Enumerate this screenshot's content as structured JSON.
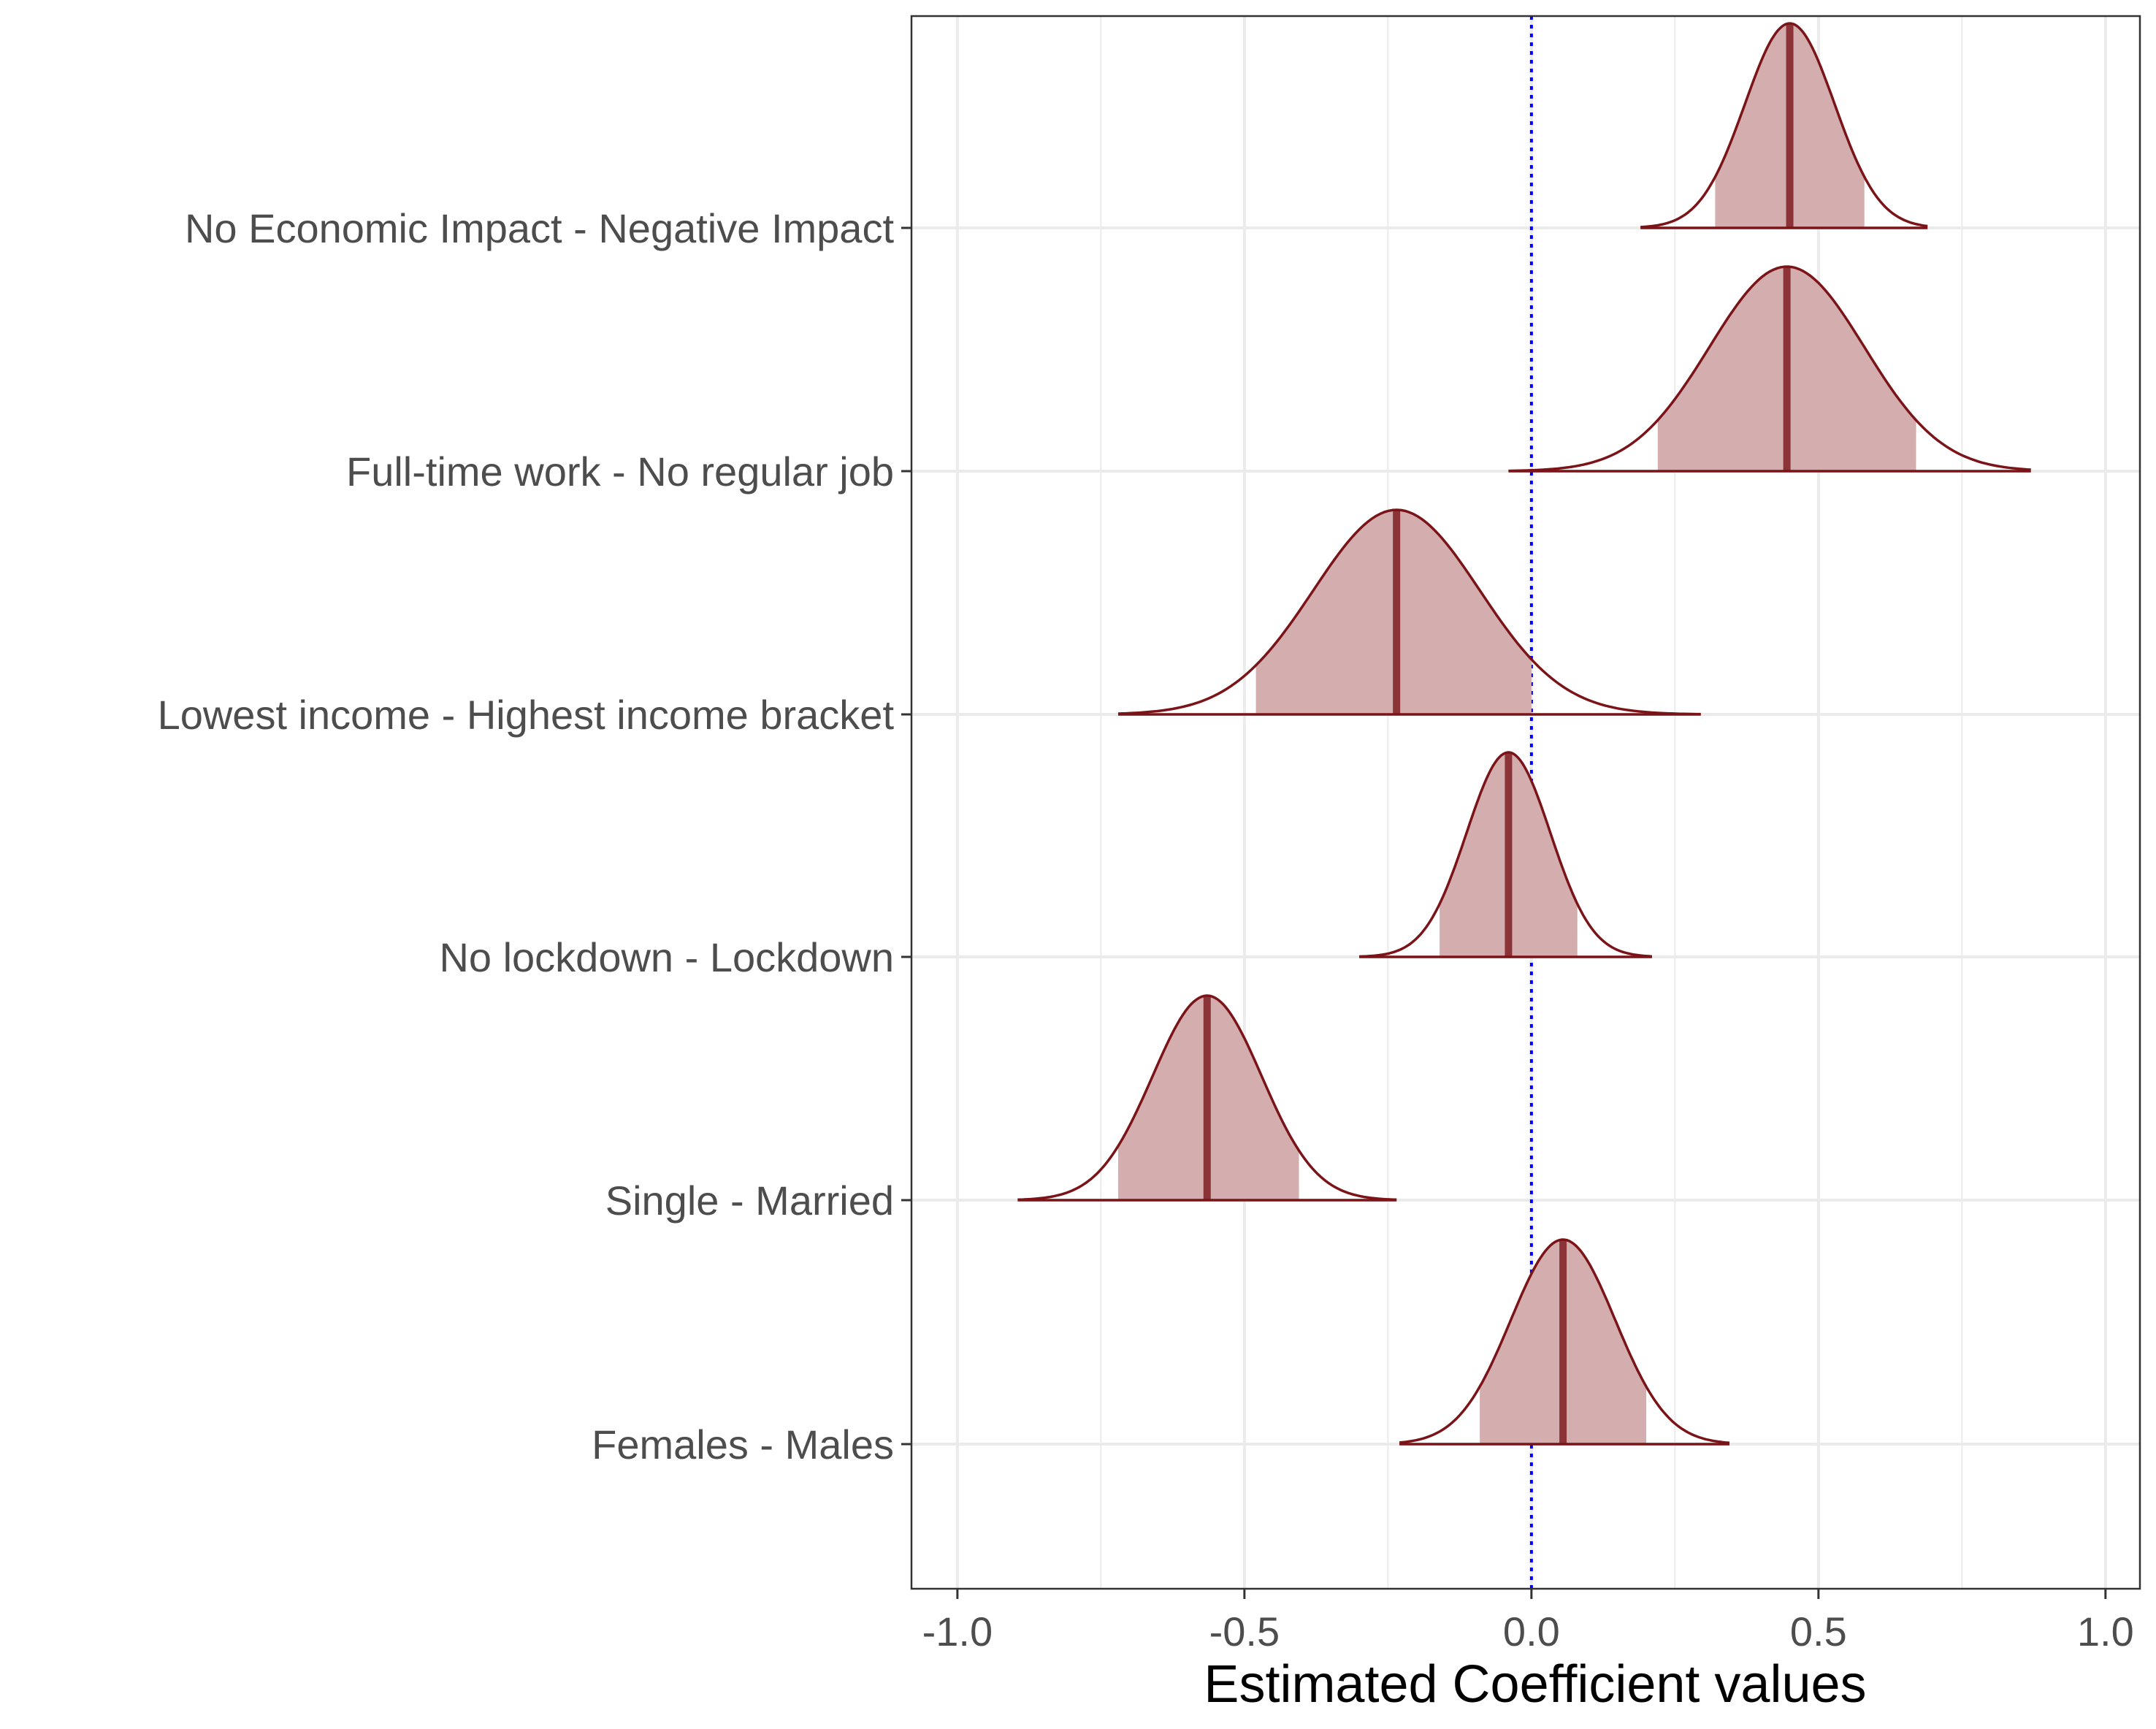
{
  "chart_data": {
    "type": "density-ridge",
    "title": "",
    "xlabel": "Estimated Coefficient values",
    "ylabel": "",
    "xlim": [
      -1.08,
      1.06
    ],
    "x_ticks": [
      -1.0,
      -0.5,
      0.0,
      0.5,
      1.0
    ],
    "x_tick_labels": [
      "-1.0",
      "-0.5",
      "0.0",
      "0.5",
      "1.0"
    ],
    "reference_line": {
      "x": 0.0,
      "style": "dotted",
      "color": "#0000ff"
    },
    "grid": true,
    "colors": {
      "fill": "#d4adaf",
      "outline": "#7a1418",
      "median": "#8c3338"
    },
    "categories": [
      "No Economic Impact - Negative Impact",
      "Full-time work - No regular job",
      "Lowest income - Highest income bracket",
      "No lockdown - Lockdown",
      "Single - Married",
      "Females - Males"
    ],
    "series": [
      {
        "label": "No Economic Impact - Negative Impact",
        "median": 0.45,
        "sd": 0.078,
        "ci80": [
          0.32,
          0.58
        ],
        "range": [
          0.19,
          0.69
        ]
      },
      {
        "label": "Full-time work - No regular job",
        "median": 0.445,
        "sd": 0.135,
        "ci80": [
          0.22,
          0.67
        ],
        "range": [
          -0.04,
          0.87
        ]
      },
      {
        "label": "Lowest income - Highest income bracket",
        "median": -0.235,
        "sd": 0.145,
        "ci80": [
          -0.48,
          0.0
        ],
        "range": [
          -0.72,
          0.295
        ]
      },
      {
        "label": "No lockdown - Lockdown",
        "median": -0.04,
        "sd": 0.073,
        "ci80": [
          -0.16,
          0.08
        ],
        "range": [
          -0.3,
          0.21
        ]
      },
      {
        "label": "Single - Married",
        "median": -0.565,
        "sd": 0.095,
        "ci80": [
          -0.72,
          -0.405
        ],
        "range": [
          -0.895,
          -0.235
        ]
      },
      {
        "label": "Females - Males",
        "median": 0.055,
        "sd": 0.091,
        "ci80": [
          -0.09,
          0.2
        ],
        "range": [
          -0.23,
          0.345
        ]
      }
    ]
  }
}
